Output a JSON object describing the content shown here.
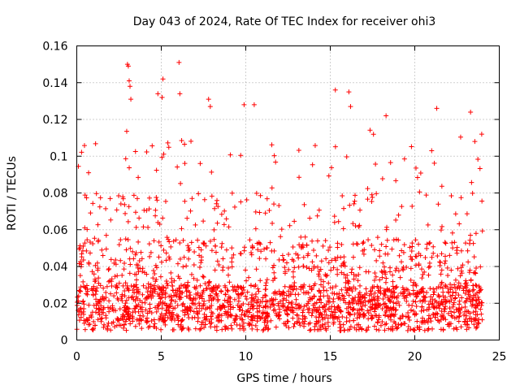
{
  "chart_data": {
    "type": "scatter",
    "title": "Day 043 of 2024, Rate Of TEC Index for receiver ohi3",
    "xlabel": "GPS time / hours",
    "ylabel": "ROTI / TECUs",
    "xlim": [
      0,
      25
    ],
    "ylim": [
      0,
      0.16
    ],
    "xticks": [
      "0",
      "5",
      "10",
      "15",
      "20",
      "25"
    ],
    "yticks": [
      "0",
      "0.02",
      "0.04",
      "0.06",
      "0.08",
      "0.1",
      "0.12",
      "0.14",
      "0.16"
    ],
    "grid": true,
    "marker": "+",
    "color": "#ff0000",
    "data_x_range": [
      0,
      24
    ],
    "notable_points": [
      {
        "x": 3.0,
        "y": 0.15
      },
      {
        "x": 3.05,
        "y": 0.149
      },
      {
        "x": 3.1,
        "y": 0.141
      },
      {
        "x": 3.15,
        "y": 0.138
      },
      {
        "x": 3.2,
        "y": 0.131
      },
      {
        "x": 4.8,
        "y": 0.134
      },
      {
        "x": 5.1,
        "y": 0.142
      },
      {
        "x": 5.05,
        "y": 0.132
      },
      {
        "x": 6.05,
        "y": 0.151
      },
      {
        "x": 6.1,
        "y": 0.134
      },
      {
        "x": 7.8,
        "y": 0.131
      },
      {
        "x": 7.9,
        "y": 0.127
      },
      {
        "x": 9.9,
        "y": 0.128
      },
      {
        "x": 10.5,
        "y": 0.128
      },
      {
        "x": 15.3,
        "y": 0.136
      },
      {
        "x": 16.1,
        "y": 0.135
      },
      {
        "x": 16.2,
        "y": 0.127
      },
      {
        "x": 18.3,
        "y": 0.122
      },
      {
        "x": 21.0,
        "y": 0.103
      },
      {
        "x": 21.3,
        "y": 0.126
      },
      {
        "x": 23.3,
        "y": 0.124
      }
    ]
  }
}
